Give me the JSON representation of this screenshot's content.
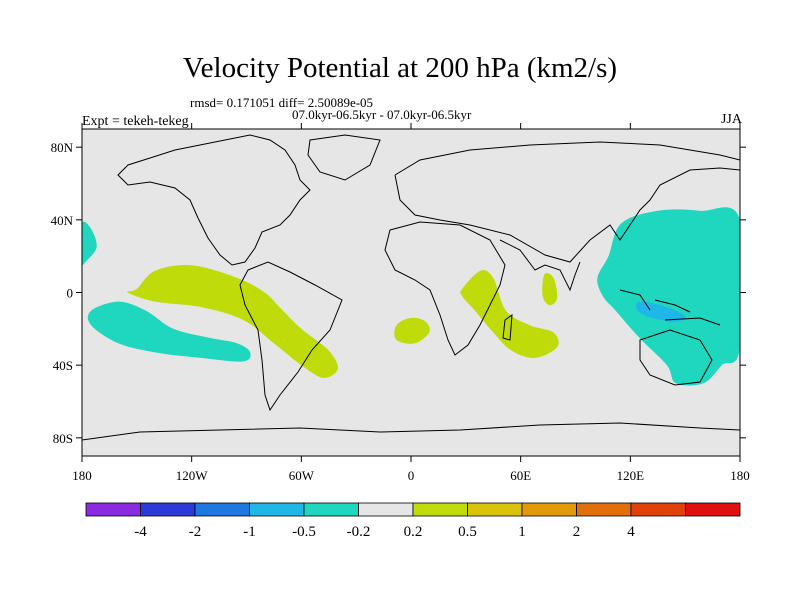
{
  "chart_data": {
    "type": "heatmap",
    "title": "Velocity Potential at 200 hPa (km2/s)",
    "stats_line": "rmsd= 0.171051 diff= 2.50089e-05",
    "periods_line": "07.0kyr-06.5kyr - 07.0kyr-06.5kyr",
    "left_label": "Expt = tekeh-tekeg",
    "right_label": "JJA",
    "x_ticks": [
      {
        "value": -180,
        "label": "180"
      },
      {
        "value": -120,
        "label": "120W"
      },
      {
        "value": -60,
        "label": "60W"
      },
      {
        "value": 0,
        "label": "0"
      },
      {
        "value": 60,
        "label": "60E"
      },
      {
        "value": 120,
        "label": "120E"
      },
      {
        "value": 180,
        "label": "180"
      }
    ],
    "y_ticks": [
      {
        "value": 80,
        "label": "80N"
      },
      {
        "value": 40,
        "label": "40N"
      },
      {
        "value": 0,
        "label": "0"
      },
      {
        "value": -40,
        "label": "40S"
      },
      {
        "value": -80,
        "label": "80S"
      }
    ],
    "xlim": [
      -180,
      180
    ],
    "ylim": [
      -90,
      90
    ],
    "colorbar": {
      "colors": [
        "#8a2be2",
        "#2a3bd8",
        "#1e78e0",
        "#1fb6e8",
        "#1fd7be",
        "#e6e6e6",
        "#bfdc0a",
        "#d8c20a",
        "#e19a0a",
        "#e2700a",
        "#e0420a",
        "#e01010"
      ],
      "labels": [
        "-4",
        "-2",
        "-1",
        "-0.5",
        "-0.2",
        "0.2",
        "0.5",
        "1",
        "2",
        "4"
      ]
    },
    "regions": [
      {
        "name": "tropical-east-pacific-positive",
        "level": "0.2 to 0.5",
        "color": "#bfdc0a",
        "points": [
          [
            -150,
            2
          ],
          [
            -140,
            12
          ],
          [
            -120,
            15
          ],
          [
            -95,
            8
          ],
          [
            -80,
            0
          ],
          [
            -72,
            -8
          ],
          [
            -60,
            -20
          ],
          [
            -45,
            -32
          ],
          [
            -40,
            -42
          ],
          [
            -48,
            -47
          ],
          [
            -60,
            -40
          ],
          [
            -75,
            -28
          ],
          [
            -92,
            -15
          ],
          [
            -115,
            -8
          ],
          [
            -140,
            -5
          ],
          [
            -155,
            0
          ]
        ]
      },
      {
        "name": "south-pacific-negative",
        "level": "-0.5 to -0.2",
        "color": "#1fd7be",
        "points": [
          [
            -175,
            -10
          ],
          [
            -160,
            -5
          ],
          [
            -145,
            -10
          ],
          [
            -130,
            -20
          ],
          [
            -110,
            -25
          ],
          [
            -95,
            -28
          ],
          [
            -88,
            -33
          ],
          [
            -92,
            -38
          ],
          [
            -115,
            -36
          ],
          [
            -140,
            -33
          ],
          [
            -160,
            -28
          ],
          [
            -175,
            -18
          ]
        ]
      },
      {
        "name": "dateline-north-negative",
        "level": "-0.5 to -0.2",
        "color": "#1fd7be",
        "points": [
          [
            -180,
            38
          ],
          [
            -175,
            35
          ],
          [
            -172,
            25
          ],
          [
            -178,
            17
          ],
          [
            -180,
            17
          ]
        ]
      },
      {
        "name": "south-atlantic-positive",
        "level": "0.2 to 0.5",
        "color": "#bfdc0a",
        "points": [
          [
            -8,
            -18
          ],
          [
            0,
            -14
          ],
          [
            8,
            -16
          ],
          [
            10,
            -22
          ],
          [
            2,
            -28
          ],
          [
            -8,
            -26
          ]
        ]
      },
      {
        "name": "east-africa-positive",
        "level": "0.2 to 0.5",
        "color": "#bfdc0a",
        "points": [
          [
            28,
            2
          ],
          [
            38,
            12
          ],
          [
            45,
            8
          ],
          [
            52,
            -10
          ],
          [
            65,
            -18
          ],
          [
            78,
            -22
          ],
          [
            80,
            -30
          ],
          [
            68,
            -36
          ],
          [
            55,
            -32
          ],
          [
            45,
            -22
          ],
          [
            35,
            -10
          ],
          [
            28,
            -2
          ]
        ]
      },
      {
        "name": "indian-ocean-positive",
        "level": "0.2 to 0.5",
        "color": "#bfdc0a",
        "points": [
          [
            73,
            10
          ],
          [
            78,
            8
          ],
          [
            80,
            -3
          ],
          [
            76,
            -7
          ],
          [
            72,
            -2
          ]
        ]
      },
      {
        "name": "west-pacific-negative",
        "level": "-0.5 to -0.2",
        "color": "#1fd7be",
        "points": [
          [
            108,
            20
          ],
          [
            115,
            38
          ],
          [
            135,
            45
          ],
          [
            158,
            45
          ],
          [
            180,
            40
          ],
          [
            180,
            -30
          ],
          [
            170,
            -40
          ],
          [
            160,
            -50
          ],
          [
            145,
            -50
          ],
          [
            140,
            -40
          ],
          [
            125,
            -25
          ],
          [
            112,
            -10
          ],
          [
            105,
            -2
          ],
          [
            102,
            8
          ]
        ]
      },
      {
        "name": "maritime-continent-negative",
        "level": "-1 to -0.5",
        "color": "#1fb6e8",
        "points": [
          [
            125,
            -5
          ],
          [
            140,
            -8
          ],
          [
            150,
            -13
          ],
          [
            145,
            -16
          ],
          [
            132,
            -14
          ],
          [
            124,
            -10
          ]
        ]
      }
    ]
  }
}
